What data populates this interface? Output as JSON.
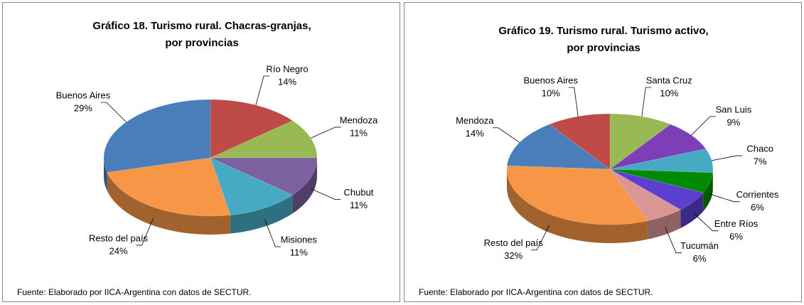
{
  "chart_data": [
    {
      "type": "pie3d",
      "title": [
        "Gráfico 18. Turismo rural. Chacras-granjas,",
        "por provincias"
      ],
      "categories": [
        "Río Negro",
        "Mendoza",
        "Chubut",
        "Misiones",
        "Resto del país",
        "Buenos Aires"
      ],
      "values": [
        14,
        11,
        11,
        11,
        24,
        29
      ],
      "value_labels": [
        "14%",
        "11%",
        "11%",
        "11%",
        "24%",
        "29%"
      ],
      "colors": [
        "#be4b48",
        "#98b954",
        "#7d60a0",
        "#46aac5",
        "#f79646",
        "#4a7ebb"
      ],
      "source": "Fuente: Elaborado por IICA-Argentina con datos de SECTUR."
    },
    {
      "type": "pie3d",
      "title": [
        "Gráfico 19. Turismo rural. Turismo activo,",
        "por provincias"
      ],
      "categories": [
        "Santa Cruz",
        "San Luis",
        "Chaco",
        "Corrientes",
        "Entre Ríos",
        "Tucumán",
        "Resto del país",
        "Mendoza",
        "Buenos Aires"
      ],
      "values": [
        10,
        9,
        7,
        6,
        6,
        6,
        32,
        14,
        10
      ],
      "value_labels": [
        "10%",
        "9%",
        "7%",
        "6%",
        "6%",
        "6%",
        "32%",
        "14%",
        "10%"
      ],
      "colors": [
        "#98b954",
        "#7d3fb8",
        "#46aac5",
        "#008a00",
        "#5b3fd0",
        "#d99694",
        "#f79646",
        "#4a7ebb",
        "#be4b48"
      ],
      "source": "Fuente: Elaborado por IICA-Argentina con datos de SECTUR."
    }
  ]
}
